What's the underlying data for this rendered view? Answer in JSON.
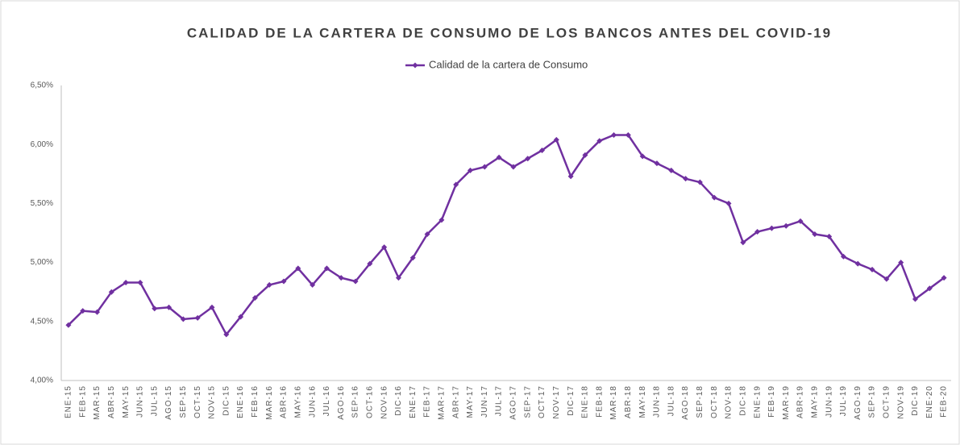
{
  "chart_data": {
    "type": "line",
    "title": "CALIDAD DE LA CARTERA DE CONSUMO DE LOS BANCOS ANTES DEL COVID-19",
    "categories": [
      "ENE-15",
      "FEB-15",
      "MAR-15",
      "ABR-15",
      "MAY-15",
      "JUN-15",
      "JUL-15",
      "AGO-15",
      "SEP-15",
      "OCT-15",
      "NOV-15",
      "DIC-15",
      "ENE-16",
      "FEB-16",
      "MAR-16",
      "ABR-16",
      "MAY-16",
      "JUN-16",
      "JUL-16",
      "AGO-16",
      "SEP-16",
      "OCT-16",
      "NOV-16",
      "DIC-16",
      "ENE-17",
      "FEB-17",
      "MAR-17",
      "ABR-17",
      "MAY-17",
      "JUN-17",
      "JUL-17",
      "AGO-17",
      "SEP-17",
      "OCT-17",
      "NOV-17",
      "DIC-17",
      "ENE-18",
      "FEB-18",
      "MAR-18",
      "ABR-18",
      "MAY-18",
      "JUN-18",
      "JUL-18",
      "AGO-18",
      "SEP-18",
      "OCT-18",
      "NOV-18",
      "DIC-18",
      "ENE-19",
      "FEB-19",
      "MAR-19",
      "ABR-19",
      "MAY-19",
      "JUN-19",
      "JUL-19",
      "AGO-19",
      "SEP-19",
      "OCT-19",
      "NOV-19",
      "DIC-19",
      "ENE-20",
      "FEB-20"
    ],
    "series": [
      {
        "name": "Calidad de la cartera de Consumo",
        "color": "#7030a0",
        "values": [
          4.47,
          4.59,
          4.58,
          4.75,
          4.83,
          4.83,
          4.61,
          4.62,
          4.52,
          4.53,
          4.62,
          4.39,
          4.54,
          4.7,
          4.81,
          4.84,
          4.95,
          4.81,
          4.95,
          4.87,
          4.84,
          4.99,
          5.13,
          4.87,
          5.04,
          5.24,
          5.36,
          5.66,
          5.78,
          5.81,
          5.89,
          5.81,
          5.88,
          5.95,
          6.04,
          5.73,
          5.91,
          6.03,
          6.08,
          6.08,
          5.9,
          5.84,
          5.78,
          5.71,
          5.68,
          5.55,
          5.5,
          5.17,
          5.26,
          5.29,
          5.31,
          5.35,
          5.24,
          5.22,
          5.05,
          4.99,
          4.94,
          4.86,
          5.0,
          4.69,
          4.78,
          4.87
        ]
      }
    ],
    "ylim": [
      4.0,
      6.5
    ],
    "yticks": [
      {
        "value": 4.0,
        "label": "4,00%"
      },
      {
        "value": 4.5,
        "label": "4,50%"
      },
      {
        "value": 5.0,
        "label": "5,00%"
      },
      {
        "value": 5.5,
        "label": "5,50%"
      },
      {
        "value": 6.0,
        "label": "6,00%"
      },
      {
        "value": 6.5,
        "label": "6,50%"
      }
    ],
    "legend": "top",
    "grid": false
  }
}
